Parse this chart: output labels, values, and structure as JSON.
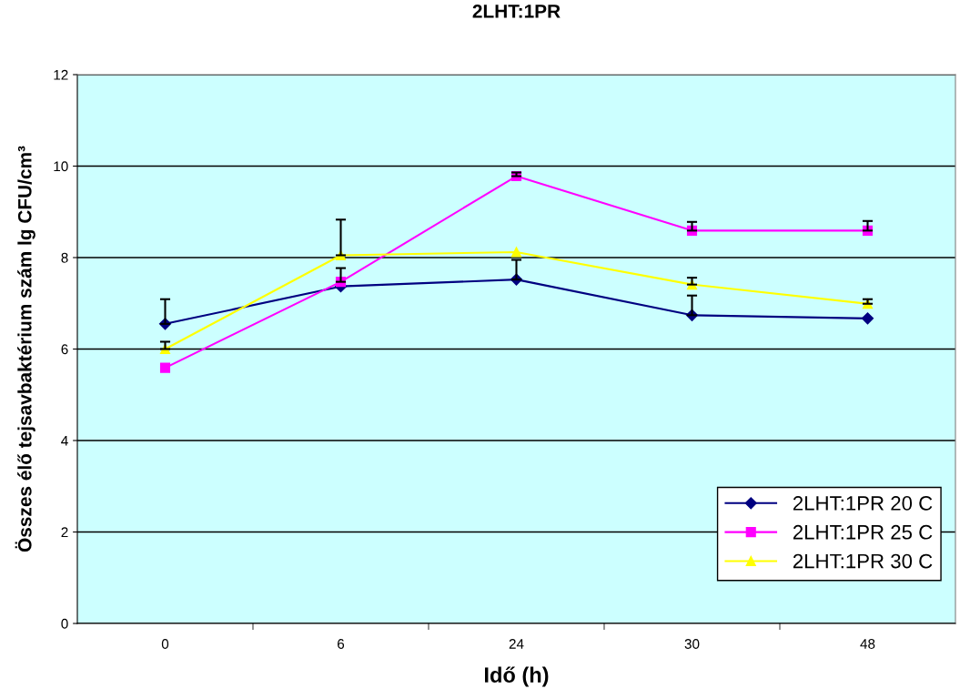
{
  "chart_data": {
    "type": "line",
    "title": "2LHT:1PR",
    "xlabel": "Idő (h)",
    "ylabel": "Összes élő tejsavbaktérium szám lg CFU/cm³",
    "categories": [
      "0",
      "6",
      "24",
      "30",
      "48"
    ],
    "series": [
      {
        "name": "2LHT:1PR 20 C",
        "color": "#000080",
        "marker": "diamond",
        "values": [
          6.55,
          7.37,
          7.52,
          6.74,
          6.67
        ],
        "errors": [
          [
            6.55,
            7.09
          ],
          null,
          [
            7.52,
            7.95
          ],
          [
            6.74,
            7.17
          ],
          null
        ]
      },
      {
        "name": "2LHT:1PR 25 C",
        "color": "#ff00ff",
        "marker": "square",
        "values": [
          5.59,
          7.47,
          9.78,
          8.59,
          8.59
        ],
        "errors": [
          null,
          [
            7.47,
            7.77
          ],
          [
            9.78,
            9.86
          ],
          [
            8.59,
            8.78
          ],
          [
            8.59,
            8.8
          ]
        ]
      },
      {
        "name": "2LHT:1PR 30 C",
        "color": "#ffff00",
        "marker": "triangle",
        "values": [
          6.0,
          8.05,
          8.12,
          7.41,
          6.99
        ],
        "errors": [
          [
            6.0,
            6.16
          ],
          [
            8.05,
            8.83
          ],
          null,
          [
            7.41,
            7.56
          ],
          [
            6.99,
            7.09
          ]
        ]
      }
    ],
    "ylim": [
      0,
      12
    ],
    "yticks": [
      0,
      2,
      4,
      6,
      8,
      10,
      12
    ],
    "grid": "y",
    "legend": "bottom right"
  }
}
